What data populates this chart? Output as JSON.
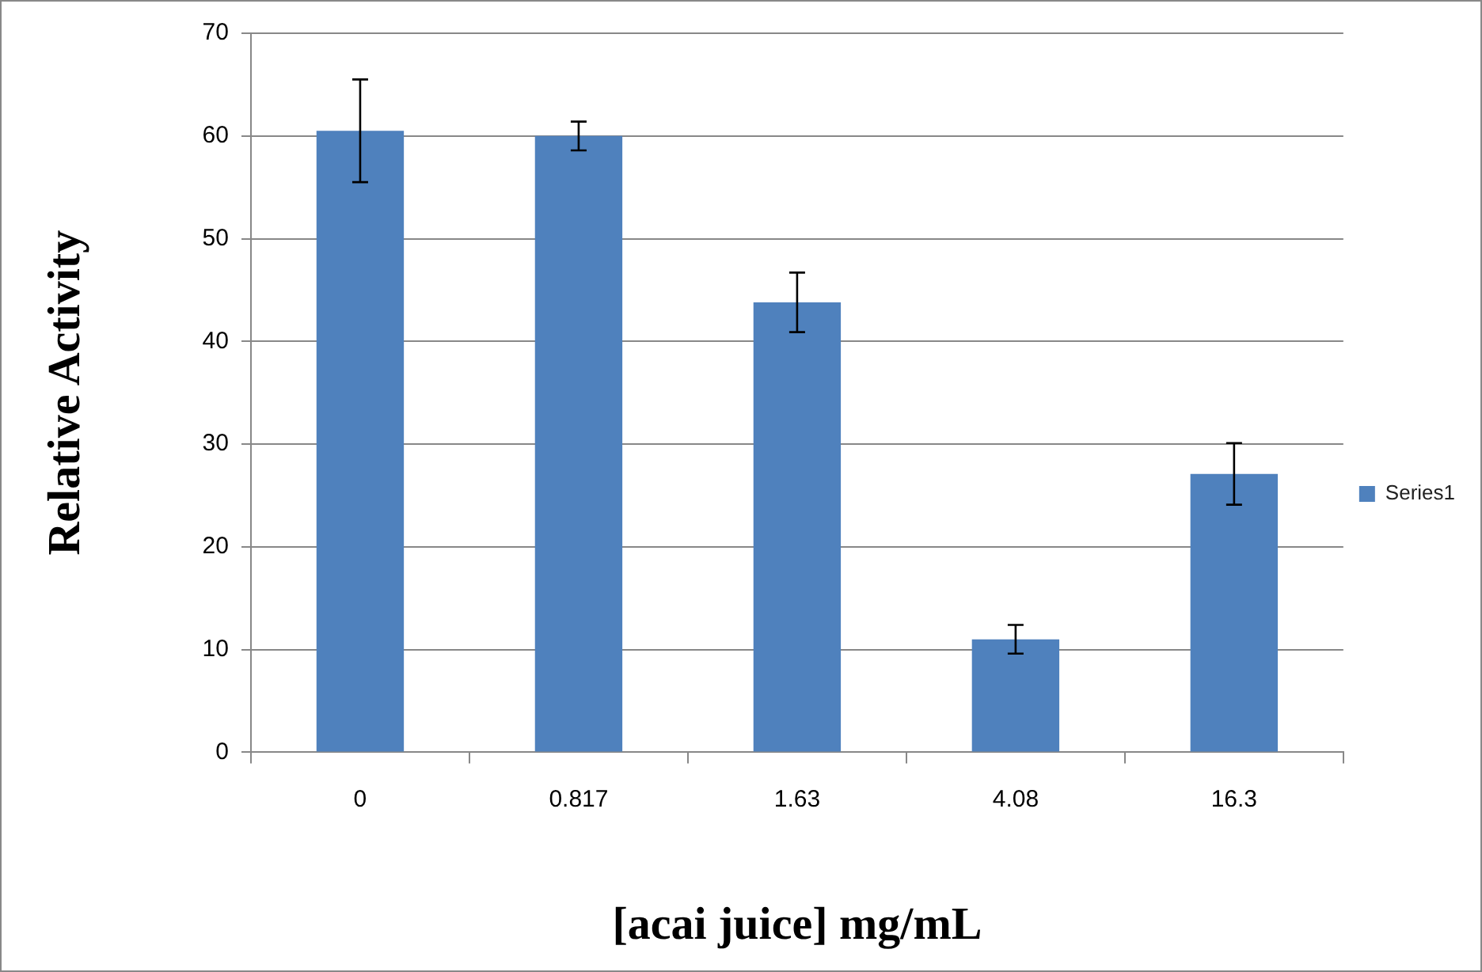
{
  "chart_data": {
    "type": "bar",
    "xlabel": "[acai juice] mg/mL",
    "ylabel": "Relative Activity",
    "categories": [
      "0",
      "0.817",
      "1.63",
      "4.08",
      "16.3"
    ],
    "series": [
      {
        "name": "Series1",
        "color": "#4f81bd",
        "values": [
          60.5,
          60.0,
          43.8,
          11.0,
          27.1
        ],
        "errors": [
          5.0,
          1.4,
          2.9,
          1.4,
          3.0
        ]
      }
    ],
    "ylim": [
      0,
      70
    ],
    "yticks": [
      0,
      10,
      20,
      30,
      40,
      50,
      60,
      70
    ],
    "grid": "y",
    "legend": "right"
  }
}
